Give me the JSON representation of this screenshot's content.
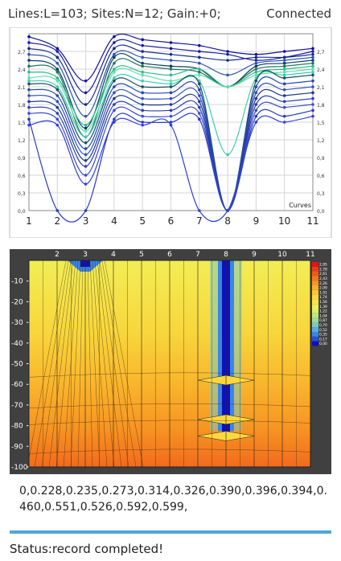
{
  "header": {
    "lines": "Lines:L=103;",
    "sites": "Sites:N=12;",
    "gain": "Gain:+0;",
    "connection": "Connected"
  },
  "chart_data": [
    {
      "type": "line",
      "xlabel": "Curves",
      "x_ticks": [
        "1",
        "2",
        "3",
        "4",
        "5",
        "6",
        "7",
        "8",
        "9",
        "10",
        "11"
      ],
      "y_ticks": [
        "0,0",
        "0,3",
        "0,6",
        "0,9",
        "1,2",
        "1,5",
        "1,8",
        "2,1",
        "2,4",
        "2,7"
      ],
      "xlim": [
        1,
        11
      ],
      "ylim": [
        0,
        3.0
      ],
      "grid": true,
      "series": [
        {
          "color": "#1010a0",
          "values": [
            2.95,
            2.75,
            2.2,
            2.95,
            2.9,
            2.85,
            2.8,
            2.7,
            2.65,
            2.7,
            2.75
          ]
        },
        {
          "color": "#1a1aa8",
          "values": [
            2.85,
            2.7,
            2.0,
            2.85,
            2.8,
            2.75,
            2.7,
            2.65,
            2.55,
            2.6,
            2.7
          ]
        },
        {
          "color": "#152c8a",
          "values": [
            2.75,
            2.6,
            1.8,
            2.75,
            2.7,
            2.65,
            2.6,
            2.55,
            2.6,
            2.6,
            2.65
          ]
        },
        {
          "color": "#2a55b0",
          "values": [
            2.65,
            2.5,
            1.6,
            2.65,
            2.6,
            2.55,
            2.5,
            2.3,
            2.5,
            2.55,
            2.6
          ]
        },
        {
          "color": "#0d3b66",
          "values": [
            2.55,
            2.4,
            1.4,
            2.6,
            2.5,
            2.45,
            2.4,
            2.1,
            2.45,
            2.5,
            2.55
          ]
        },
        {
          "color": "#1e7a55",
          "values": [
            2.45,
            2.35,
            1.25,
            2.5,
            2.45,
            2.4,
            2.35,
            2.1,
            2.4,
            2.45,
            2.5
          ]
        },
        {
          "color": "#2fb98b",
          "values": [
            2.35,
            2.25,
            1.45,
            2.4,
            2.35,
            2.3,
            2.4,
            2.1,
            2.35,
            2.4,
            2.45
          ]
        },
        {
          "color": "#58e2a5",
          "values": [
            2.25,
            2.2,
            1.35,
            2.35,
            2.3,
            2.2,
            2.3,
            2.1,
            2.3,
            2.35,
            2.4
          ]
        },
        {
          "color": "#3cc9b8",
          "values": [
            2.2,
            2.1,
            1.25,
            2.25,
            2.2,
            2.15,
            2.2,
            0.95,
            2.25,
            2.3,
            2.35
          ]
        },
        {
          "color": "#1b4d5e",
          "values": [
            2.15,
            2.05,
            1.15,
            2.2,
            2.1,
            2.1,
            2.15,
            0.0,
            2.2,
            2.25,
            2.3
          ]
        },
        {
          "color": "#2244bb",
          "values": [
            2.05,
            1.95,
            1.05,
            2.1,
            2.0,
            2.0,
            2.05,
            0.0,
            2.1,
            2.15,
            2.2
          ]
        },
        {
          "color": "#3050c0",
          "values": [
            1.95,
            1.85,
            0.95,
            2.0,
            1.9,
            1.9,
            1.95,
            0.0,
            2.0,
            2.05,
            2.1
          ]
        },
        {
          "color": "#203a90",
          "values": [
            1.85,
            1.75,
            0.85,
            1.9,
            1.8,
            1.8,
            1.85,
            0.0,
            1.9,
            1.95,
            2.0
          ]
        },
        {
          "color": "#2b3fb5",
          "values": [
            1.75,
            1.65,
            0.75,
            1.8,
            1.7,
            1.7,
            1.75,
            0.0,
            1.8,
            1.85,
            1.9
          ]
        },
        {
          "color": "#3a4cd0",
          "values": [
            1.65,
            1.55,
            0.6,
            1.7,
            1.6,
            1.6,
            1.65,
            0.0,
            1.7,
            1.75,
            1.8
          ]
        },
        {
          "color": "#2a3ac8",
          "values": [
            1.55,
            0.0,
            0.0,
            1.55,
            1.5,
            1.5,
            1.55,
            0.0,
            1.6,
            1.6,
            1.7
          ]
        },
        {
          "color": "#3040d8",
          "values": [
            1.45,
            1.45,
            0.45,
            1.5,
            1.45,
            1.45,
            0.0,
            0.0,
            1.5,
            1.5,
            1.6
          ]
        }
      ]
    },
    {
      "type": "heatmap",
      "x_ticks": [
        "2",
        "3",
        "4",
        "5",
        "6",
        "7",
        "8",
        "9",
        "10",
        "11"
      ],
      "y_ticks": [
        "-10",
        "-20",
        "-30",
        "-40",
        "-50",
        "-60",
        "-70",
        "-80",
        "-90",
        "-100"
      ],
      "xlim": [
        1,
        11
      ],
      "ylim": [
        0,
        -100
      ],
      "legend_placement": "right",
      "legend_values": [
        "2,95",
        "2,78",
        "2,61",
        "2,43",
        "2,26",
        "2,09",
        "1,91",
        "1,74",
        "1,56",
        "1,39",
        "1,22",
        "1,04",
        "0,87",
        "0,70",
        "0,52",
        "0,35",
        "0,17",
        "0,00"
      ],
      "legend_colors": [
        "#e8101a",
        "#ee3a18",
        "#f35a18",
        "#f7781c",
        "#f99424",
        "#fbae2c",
        "#fcc634",
        "#fcd83e",
        "#f9e64a",
        "#eef05a",
        "#d8f06a",
        "#bfe87a",
        "#9fdb9a",
        "#7cc9c0",
        "#56aee0",
        "#3a86e4",
        "#2254d8",
        "#1010b8"
      ],
      "contour_columns_low": [
        3,
        8
      ]
    }
  ],
  "values_text": "0,0.228,0.235,0.273,0.314,0.326,0.390,0.396,0.394,0.460,0.551,0.526,0.592,0.599,",
  "status": {
    "text": "Status:record completed!"
  }
}
